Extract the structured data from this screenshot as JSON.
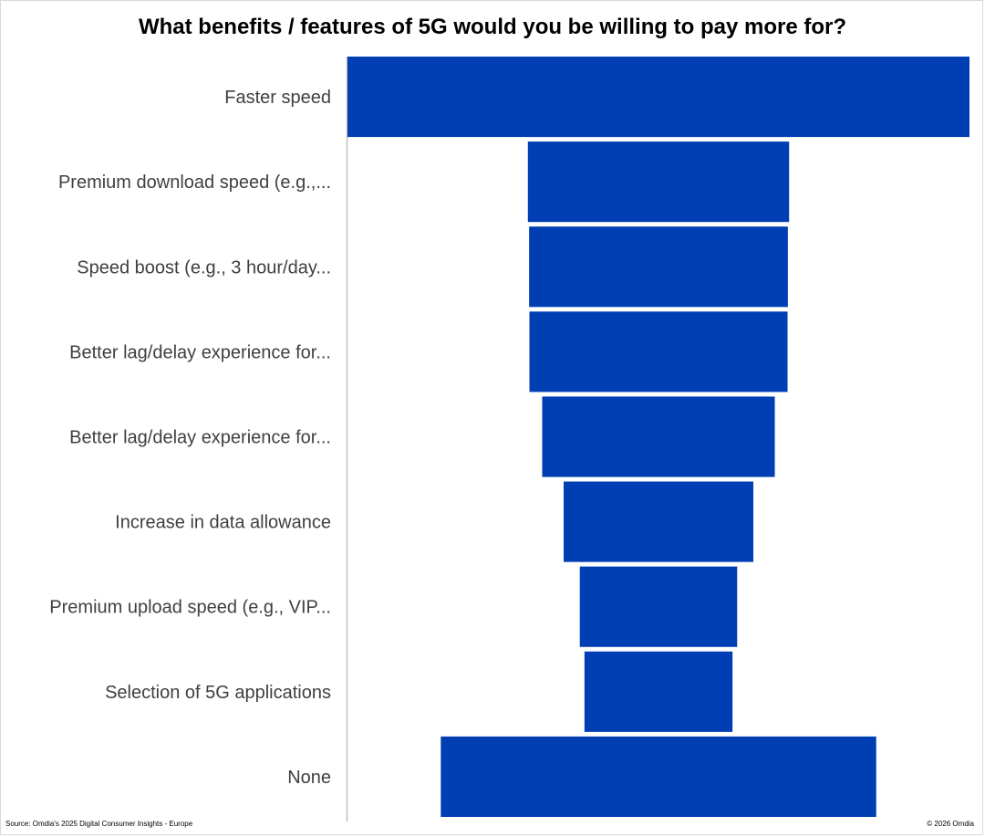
{
  "chart_data": {
    "type": "bar",
    "subtype": "funnel",
    "title": "What benefits / features of 5G would you be willing to pay more for?",
    "categories": [
      "Faster speed",
      "Premium download speed (e.g.,...",
      "Speed boost (e.g., 3 hour/day...",
      "Better lag/delay experience for...",
      "Better lag/delay experience for...",
      "Increase in data allowance",
      "Premium upload speed (e.g., VIP...",
      "Selection of 5G applications",
      "None"
    ],
    "values": [
      100,
      42,
      41.6,
      41.5,
      37.4,
      30.5,
      25.3,
      23.8,
      70
    ],
    "bar_color": "#003eb3",
    "axis_color": "#bfbfbf",
    "label_color": "#3f3f3f"
  },
  "footer": {
    "source": "Source: Omdia's 2025 Digital Consumer Insights - Europe",
    "copyright": "© 2026 Omdia"
  }
}
